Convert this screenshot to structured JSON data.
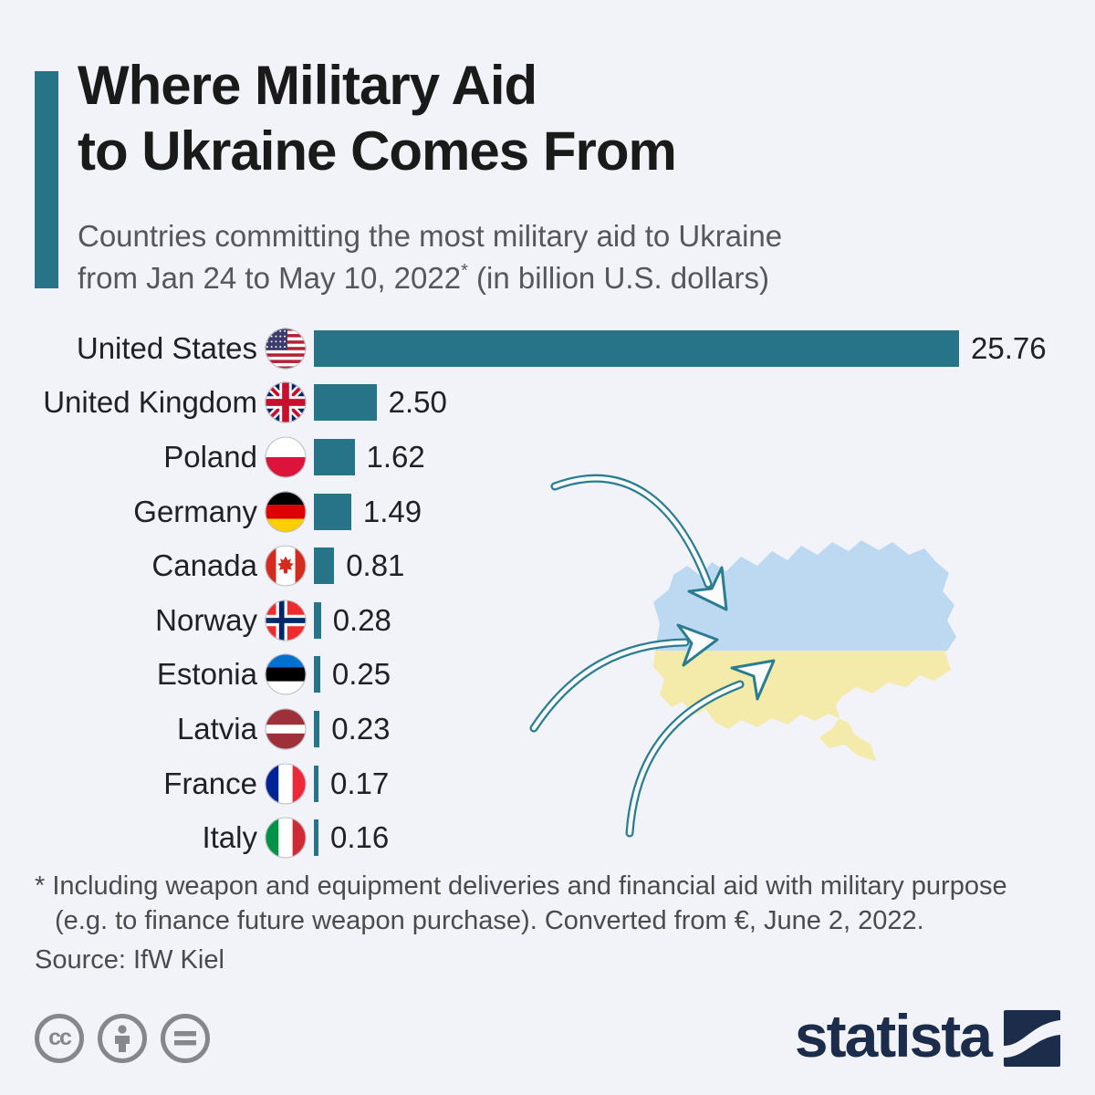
{
  "header": {
    "title": "Where Military Aid\nto Ukraine Comes From",
    "subtitle_line1": "Countries committing the most military aid to Ukraine",
    "subtitle_line2_prefix": "from Jan 24 to May 10, 2022",
    "subtitle_asterisk": "*",
    "subtitle_line2_suffix": " (in billion U.S. dollars)"
  },
  "chart_data": {
    "type": "bar",
    "orientation": "horizontal",
    "title": "Where Military Aid to Ukraine Comes From",
    "subtitle": "Countries committing the most military aid to Ukraine from Jan 24 to May 10, 2022* (in billion U.S. dollars)",
    "unit": "billion U.S. dollars",
    "xlim": [
      0,
      25.76
    ],
    "grid": false,
    "legend": "none",
    "bar_color": "#277387",
    "categories": [
      "United States",
      "United Kingdom",
      "Poland",
      "Germany",
      "Canada",
      "Norway",
      "Estonia",
      "Latvia",
      "France",
      "Italy"
    ],
    "values": [
      25.76,
      2.5,
      1.62,
      1.49,
      0.81,
      0.28,
      0.25,
      0.23,
      0.17,
      0.16
    ],
    "rows": [
      {
        "name": "United States",
        "value": 25.76,
        "label": "25.76",
        "flag_icon": "united-states-flag-icon",
        "flag_code": "us"
      },
      {
        "name": "United Kingdom",
        "value": 2.5,
        "label": "2.50",
        "flag_icon": "united-kingdom-flag-icon",
        "flag_code": "uk"
      },
      {
        "name": "Poland",
        "value": 1.62,
        "label": "1.62",
        "flag_icon": "poland-flag-icon",
        "flag_code": "pl"
      },
      {
        "name": "Germany",
        "value": 1.49,
        "label": "1.49",
        "flag_icon": "germany-flag-icon",
        "flag_code": "de"
      },
      {
        "name": "Canada",
        "value": 0.81,
        "label": "0.81",
        "flag_icon": "canada-flag-icon",
        "flag_code": "ca"
      },
      {
        "name": "Norway",
        "value": 0.28,
        "label": "0.28",
        "flag_icon": "norway-flag-icon",
        "flag_code": "no"
      },
      {
        "name": "Estonia",
        "value": 0.25,
        "label": "0.25",
        "flag_icon": "estonia-flag-icon",
        "flag_code": "ee"
      },
      {
        "name": "Latvia",
        "value": 0.23,
        "label": "0.23",
        "flag_icon": "latvia-flag-icon",
        "flag_code": "lv"
      },
      {
        "name": "France",
        "value": 0.17,
        "label": "0.17",
        "flag_icon": "france-flag-icon",
        "flag_code": "fr"
      },
      {
        "name": "Italy",
        "value": 0.16,
        "label": "0.16",
        "flag_icon": "italy-flag-icon",
        "flag_code": "it"
      }
    ]
  },
  "footer": {
    "footnote_line1": "* Including weapon and equipment deliveries and financial aid with military purpose",
    "footnote_line2": "(e.g. to finance future weapon purchase). Converted from €, June 2, 2022.",
    "source": "Source: IfW Kiel"
  },
  "branding": {
    "logo_text": "statista",
    "cc_icon": "cc",
    "nd_icon": "=",
    "icons": [
      "creative-commons-icon",
      "attribution-icon",
      "no-derivatives-icon"
    ]
  },
  "colors": {
    "accent_teal": "#277387",
    "background": "#f1f3f8",
    "title": "#1a1a1a",
    "subtitle": "#56575a",
    "map_blue": "#bdd8f1",
    "map_yellow": "#f4eaa9",
    "arrow_teal": "#2a7d90",
    "statista_navy": "#1b2d4a",
    "cc_gray": "#85878a",
    "footnote": "#4b4b4d"
  }
}
